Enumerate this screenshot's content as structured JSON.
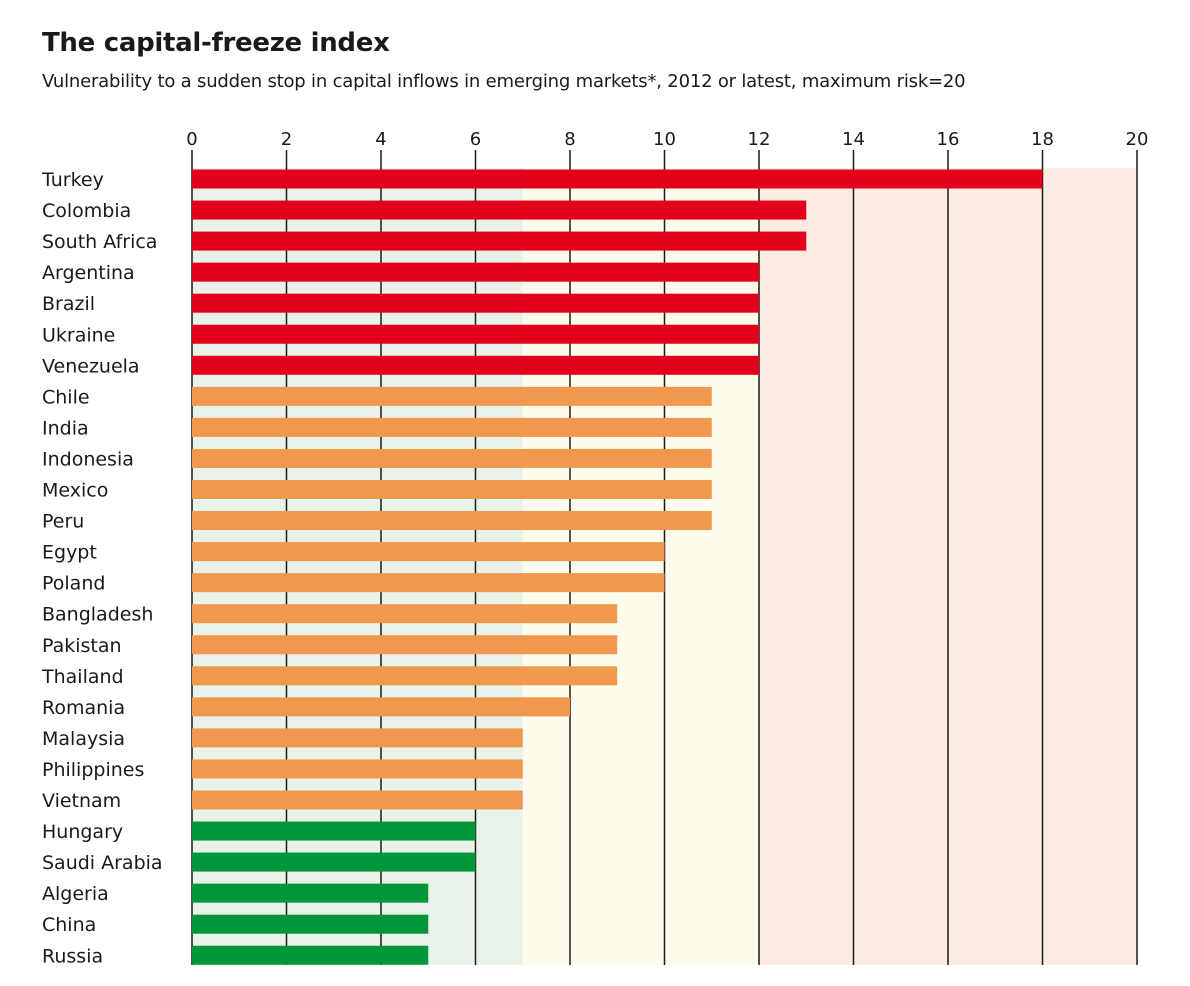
{
  "chart_data": {
    "type": "bar",
    "orientation": "horizontal",
    "title": "The capital-freeze index",
    "subtitle": "Vulnerability to a sudden stop in capital inflows in emerging markets*, 2012 or latest, maximum risk=20",
    "xlabel": "",
    "ylabel": "",
    "xlim": [
      0,
      20
    ],
    "ticks": [
      0,
      2,
      4,
      6,
      8,
      10,
      12,
      14,
      16,
      18,
      20
    ],
    "grid": true,
    "risk_bands": [
      {
        "name": "low",
        "from": 0,
        "to": 7,
        "color": "#e8f2e8"
      },
      {
        "name": "medium",
        "from": 7,
        "to": 12,
        "color": "#fdfbec"
      },
      {
        "name": "high",
        "from": 12,
        "to": 20,
        "color": "#fcebe3"
      }
    ],
    "colors": {
      "high": "#e3001b",
      "medium": "#f0984d",
      "low": "#009639"
    },
    "categories": [
      "Turkey",
      "Colombia",
      "South Africa",
      "Argentina",
      "Brazil",
      "Ukraine",
      "Venezuela",
      "Chile",
      "India",
      "Indonesia",
      "Mexico",
      "Peru",
      "Egypt",
      "Poland",
      "Bangladesh",
      "Pakistan",
      "Thailand",
      "Romania",
      "Malaysia",
      "Philippines",
      "Vietnam",
      "Hungary",
      "Saudi Arabia",
      "Algeria",
      "China",
      "Russia"
    ],
    "values": [
      18,
      13,
      13,
      12,
      12,
      12,
      12,
      11,
      11,
      11,
      11,
      11,
      10,
      10,
      9,
      9,
      9,
      8,
      7,
      7,
      7,
      6,
      6,
      5,
      5,
      5
    ],
    "groups": [
      "high",
      "high",
      "high",
      "high",
      "high",
      "high",
      "high",
      "medium",
      "medium",
      "medium",
      "medium",
      "medium",
      "medium",
      "medium",
      "medium",
      "medium",
      "medium",
      "medium",
      "medium",
      "medium",
      "medium",
      "low",
      "low",
      "low",
      "low",
      "low"
    ]
  }
}
